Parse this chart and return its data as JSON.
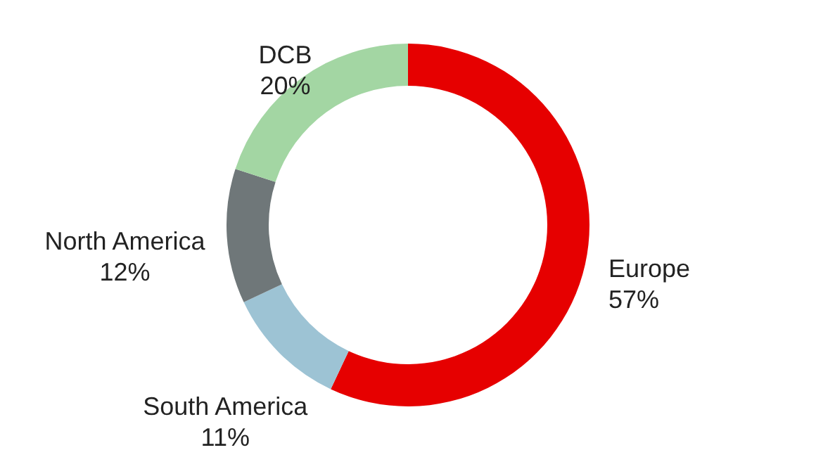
{
  "chart_data": {
    "type": "donut",
    "categories": [
      "Europe",
      "South America",
      "North America",
      "DCB"
    ],
    "values": [
      57,
      11,
      12,
      20
    ],
    "colors": [
      "#e60000",
      "#9dc3d4",
      "#6f7779",
      "#a3d6a3"
    ],
    "value_labels": [
      "57%",
      "11%",
      "12%",
      "20%"
    ]
  }
}
